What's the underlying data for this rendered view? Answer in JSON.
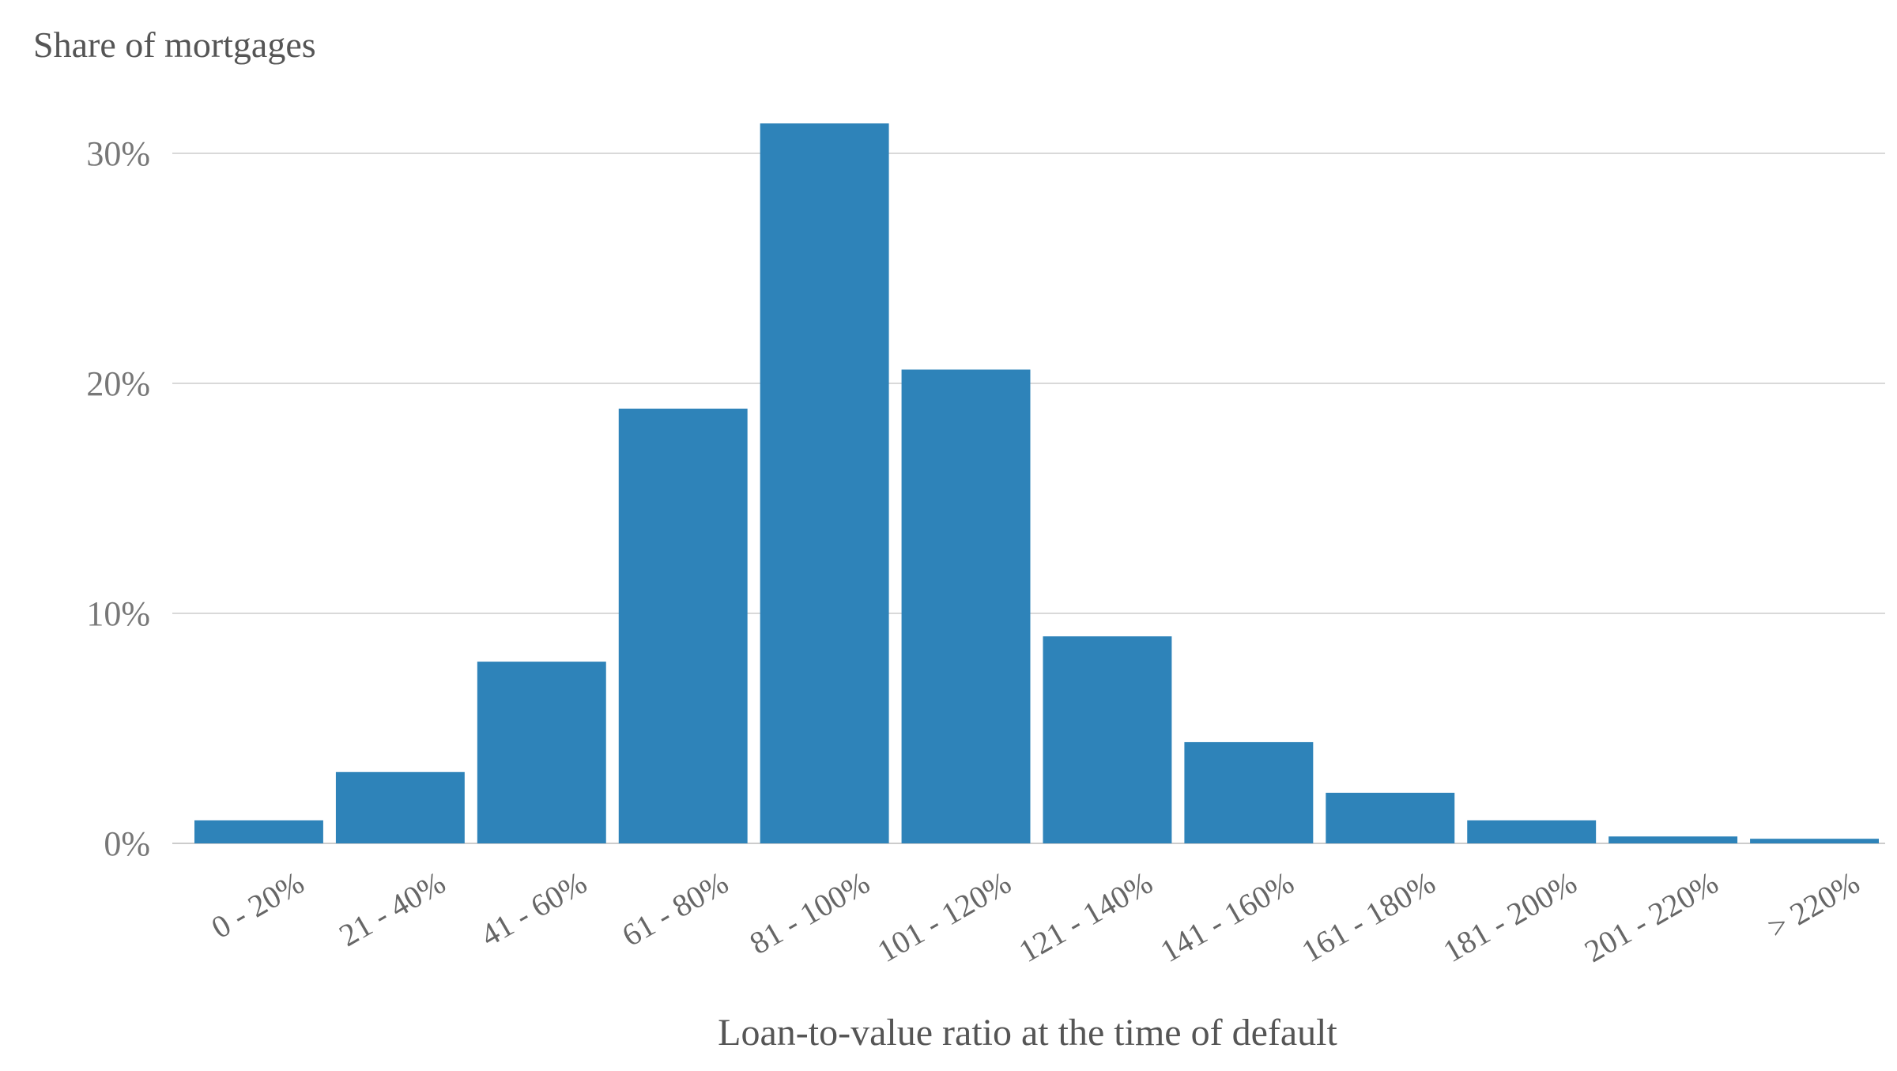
{
  "chart_data": {
    "type": "bar",
    "ylabel": "Share of mortgages",
    "xlabel": "Loan-to-value ratio at the time of default",
    "categories": [
      "0 - 20%",
      "21 - 40%",
      "41 - 60%",
      "61 - 80%",
      "81 - 100%",
      "101 - 120%",
      "121 - 140%",
      "141 - 160%",
      "161 - 180%",
      "181 - 200%",
      "201 - 220%",
      "> 220%"
    ],
    "values": [
      1.0,
      3.1,
      7.9,
      18.9,
      31.3,
      20.6,
      9.0,
      4.4,
      2.2,
      1.0,
      0.3,
      0.2
    ],
    "ylim": [
      0,
      32
    ],
    "yticks": [
      0,
      10,
      20,
      30
    ],
    "ytick_labels": [
      "0%",
      "10%",
      "20%",
      "30%"
    ],
    "grid": true,
    "bar_color": "#2e83b9",
    "grid_color": "#d9d9d9",
    "axis_color": "#cccccc"
  }
}
